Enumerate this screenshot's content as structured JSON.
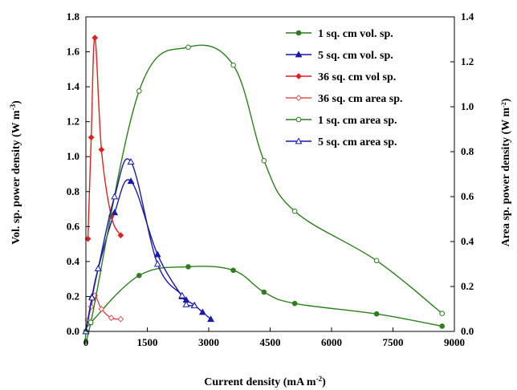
{
  "chart_data": {
    "type": "scatter",
    "xlabel": "Current density (mA m",
    "xlabel_sup": "-2",
    "xlabel_end": ")",
    "ylabel_left": "Vol. sp. power density (W m",
    "ylabel_left_sup": "-3",
    "ylabel_left_end": ")",
    "ylabel_right": "Area sp. power density (W m",
    "ylabel_right_sup": "-2",
    "ylabel_right_end": ")",
    "xlim": [
      0,
      9000
    ],
    "ylim_left": [
      0,
      1.8
    ],
    "ylim_right": [
      0,
      1.4
    ],
    "x_ticks": [
      "0",
      "1500",
      "3000",
      "4500",
      "6000",
      "7500",
      "9000"
    ],
    "y_left_ticks": [
      "0.0",
      "0.2",
      "0.4",
      "0.6",
      "0.8",
      "1.0",
      "1.2",
      "1.4",
      "1.6",
      "1.8"
    ],
    "y_right_ticks": [
      "0.0",
      "0.2",
      "0.4",
      "0.6",
      "0.8",
      "1.0",
      "1.2",
      "1.4"
    ],
    "grid": false,
    "legend_position": "top-right",
    "series": [
      {
        "name": "1 sq. cm vol. sp.",
        "axis": "left",
        "color": "#2e7d1e",
        "marker": "circle-filled",
        "line": "smooth",
        "x": [
          0,
          120,
          1300,
          2500,
          3600,
          4350,
          5100,
          7100,
          8700
        ],
        "y": [
          0.0,
          0.05,
          0.32,
          0.37,
          0.35,
          0.225,
          0.16,
          0.1,
          0.03
        ]
      },
      {
        "name": "5 sq. cm vol. sp.",
        "axis": "left",
        "color": "#1a1aa8",
        "marker": "triangle-filled",
        "line": "smooth",
        "x": [
          0,
          150,
          300,
          700,
          1100,
          1750,
          2350,
          2450,
          2650,
          2850,
          3050
        ],
        "y": [
          0.0,
          0.2,
          0.36,
          0.68,
          0.86,
          0.44,
          0.2,
          0.18,
          0.15,
          0.11,
          0.07
        ]
      },
      {
        "name": "36 sq. cm vol sp.",
        "axis": "left",
        "color": "#e02020",
        "marker": "diamond-filled",
        "line": "smooth",
        "x": [
          50,
          130,
          220,
          380,
          620,
          850
        ],
        "y": [
          0.53,
          1.11,
          1.68,
          1.04,
          0.66,
          0.55
        ]
      },
      {
        "name": "36 sq. cm area sp.",
        "axis": "right",
        "color": "#e05050",
        "marker": "diamond-open",
        "line": "smooth",
        "x": [
          50,
          130,
          220,
          380,
          620,
          850
        ],
        "y": [
          0.05,
          0.11,
          0.16,
          0.1,
          0.06,
          0.055
        ]
      },
      {
        "name": "1 sq. cm area sp.",
        "axis": "right",
        "color": "#2e7d1e",
        "marker": "circle-open",
        "line": "smooth",
        "x": [
          0,
          120,
          1300,
          2500,
          3600,
          4350,
          5100,
          7100,
          8700
        ],
        "y": [
          0.0,
          0.04,
          1.07,
          1.265,
          1.185,
          0.76,
          0.535,
          0.315,
          0.08
        ]
      },
      {
        "name": "5 sq. cm area sp.",
        "axis": "right",
        "color": "#1a1aa8",
        "marker": "triangle-open",
        "line": "smooth",
        "x": [
          0,
          150,
          300,
          700,
          1100,
          1750,
          2350,
          2450,
          2650
        ],
        "y": [
          0.0,
          0.15,
          0.28,
          0.6,
          0.755,
          0.3,
          0.16,
          0.12,
          0.115
        ]
      }
    ]
  }
}
